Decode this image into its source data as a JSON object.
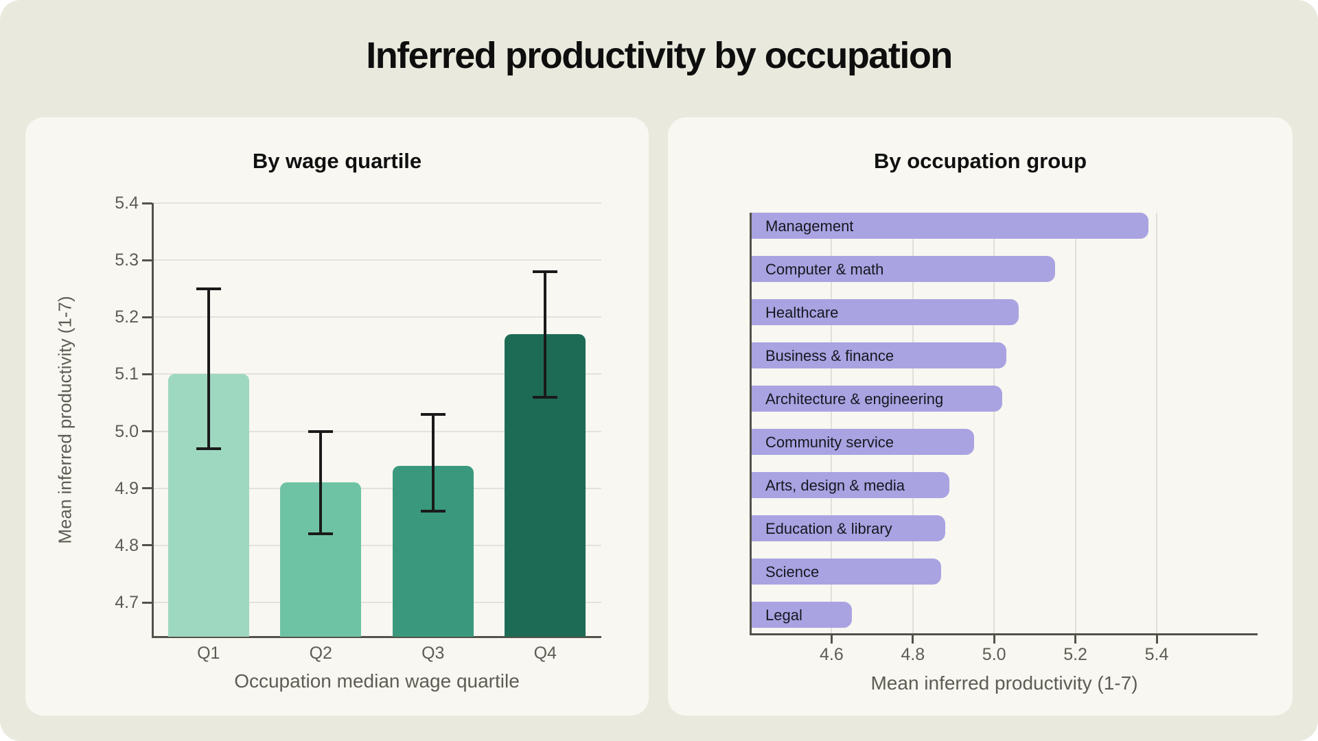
{
  "page": {
    "title": "Inferred productivity by occupation",
    "background": "#e9e9dd",
    "card_background": "#f8f7f1",
    "accent_green": "#3a997d",
    "accent_purple": "#a9a3e2"
  },
  "chart_data": [
    {
      "id": "wage-quartile",
      "type": "bar",
      "title": "By wage quartile",
      "xlabel": "Occupation median wage quartile",
      "ylabel": "Mean inferred productivity (1-7)",
      "categories": [
        "Q1",
        "Q2",
        "Q3",
        "Q4"
      ],
      "values": [
        5.1,
        4.91,
        4.94,
        5.17
      ],
      "error_low": [
        4.97,
        4.82,
        4.86,
        5.06
      ],
      "error_high": [
        5.25,
        5.0,
        5.03,
        5.28
      ],
      "bar_colors": [
        "#9ed8c1",
        "#6ec3a4",
        "#3a997d",
        "#1e6b55"
      ],
      "ylim": [
        4.64,
        5.4
      ],
      "yticks": [
        4.7,
        4.8,
        4.9,
        5.0,
        5.1,
        5.2,
        5.3,
        5.4
      ],
      "grid": true,
      "legend": "none"
    },
    {
      "id": "occupation-group",
      "type": "bar-horizontal",
      "title": "By occupation group",
      "xlabel": "Mean inferred productivity (1-7)",
      "categories": [
        "Management",
        "Computer & math",
        "Healthcare",
        "Business & finance",
        "Architecture & engineering",
        "Community service",
        "Arts, design & media",
        "Education & library",
        "Science",
        "Legal"
      ],
      "values": [
        5.38,
        5.15,
        5.06,
        5.03,
        5.02,
        4.95,
        4.89,
        4.88,
        4.87,
        4.65
      ],
      "bar_color": "#a9a3e2",
      "xlim": [
        4.4,
        5.65
      ],
      "xticks": [
        4.6,
        4.8,
        5.0,
        5.2,
        5.4
      ],
      "grid": true,
      "legend": "none"
    }
  ]
}
